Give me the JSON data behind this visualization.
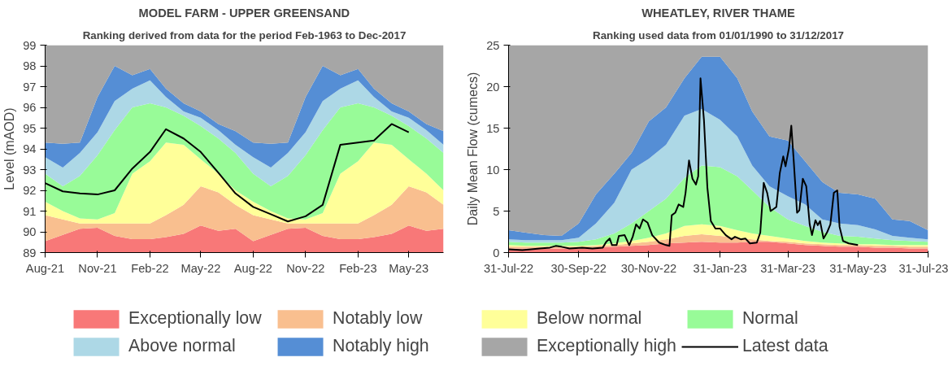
{
  "chart_data": [
    {
      "type": "area",
      "title": "MODEL FARM - UPPER GREENSAND",
      "subtitle": "Ranking derived from data for the period Feb-1963 to Dec-2017",
      "ylabel": "Level (mAOD)",
      "x": [
        "2021-08",
        "2021-09",
        "2021-10",
        "2021-11",
        "2021-12",
        "2022-01",
        "2022-02",
        "2022-03",
        "2022-04",
        "2022-05",
        "2022-06",
        "2022-07",
        "2022-08",
        "2022-09",
        "2022-10",
        "2022-11",
        "2022-12",
        "2023-01",
        "2023-02",
        "2023-03",
        "2023-04",
        "2023-05",
        "2023-06",
        "2023-07"
      ],
      "xlim": [
        "2021-08",
        "2023-07"
      ],
      "xticks": [
        {
          "value": "2021-08",
          "label": "Aug-21"
        },
        {
          "value": "2021-11",
          "label": "Nov-21"
        },
        {
          "value": "2022-02",
          "label": "Feb-22"
        },
        {
          "value": "2022-05",
          "label": "May-22"
        },
        {
          "value": "2022-08",
          "label": "Aug-22"
        },
        {
          "value": "2022-11",
          "label": "Nov-22"
        },
        {
          "value": "2023-02",
          "label": "Feb-23"
        },
        {
          "value": "2023-05",
          "label": "May-23"
        }
      ],
      "ylim": [
        89,
        99
      ],
      "yticks": [
        89,
        90,
        91,
        92,
        93,
        94,
        95,
        96,
        97,
        98,
        99
      ],
      "legend": "bottom",
      "series": [
        {
          "name": "Exceptionally low",
          "color": "#f87878",
          "values": [
            89.55,
            89.85,
            90.15,
            90.2,
            89.8,
            89.65,
            89.65,
            89.75,
            89.9,
            90.3,
            90.05,
            90.15,
            89.55,
            89.85,
            90.15,
            90.2,
            89.8,
            89.65,
            89.65,
            89.75,
            89.9,
            90.3,
            90.05,
            90.15
          ]
        },
        {
          "name": "Notably low",
          "color": "#f9bf8f",
          "values": [
            90.8,
            90.6,
            90.4,
            90.4,
            90.4,
            90.4,
            90.4,
            90.8,
            91.3,
            92.2,
            91.9,
            91.3,
            90.8,
            90.6,
            90.4,
            90.4,
            90.4,
            90.4,
            90.4,
            90.8,
            91.3,
            92.2,
            91.9,
            91.3
          ]
        },
        {
          "name": "Below normal",
          "color": "#ffff99",
          "values": [
            91.45,
            91.0,
            90.65,
            90.6,
            90.9,
            92.8,
            93.4,
            94.3,
            94.2,
            93.5,
            92.8,
            92.0,
            91.45,
            91.0,
            90.65,
            90.6,
            90.9,
            92.8,
            93.4,
            94.3,
            94.2,
            93.5,
            92.8,
            92.0
          ]
        },
        {
          "name": "Normal",
          "color": "#98fb98",
          "values": [
            92.8,
            92.2,
            92.7,
            93.7,
            94.9,
            96.0,
            96.2,
            96.0,
            95.6,
            95.1,
            94.5,
            93.8,
            92.8,
            92.2,
            92.7,
            93.7,
            94.9,
            96.0,
            96.2,
            96.0,
            95.6,
            95.1,
            94.5,
            93.8
          ]
        },
        {
          "name": "Above normal",
          "color": "#add8e6",
          "values": [
            93.6,
            93.1,
            93.8,
            94.8,
            96.3,
            96.9,
            97.3,
            96.5,
            95.8,
            95.5,
            94.9,
            94.2,
            93.6,
            93.1,
            93.8,
            94.8,
            96.3,
            96.9,
            97.3,
            96.5,
            95.8,
            95.5,
            94.9,
            94.2
          ]
        },
        {
          "name": "Notably high",
          "color": "#558ed5",
          "values": [
            94.3,
            94.25,
            94.3,
            96.5,
            98.0,
            97.55,
            97.85,
            96.9,
            96.2,
            95.8,
            95.2,
            94.85,
            94.3,
            94.25,
            94.3,
            96.5,
            98.0,
            97.55,
            97.85,
            96.9,
            96.2,
            95.8,
            95.2,
            94.85
          ]
        },
        {
          "name": "Exceptionally high",
          "color": "#a6a6a6",
          "values": [
            99,
            99,
            99,
            99,
            99,
            99,
            99,
            99,
            99,
            99,
            99,
            99,
            99,
            99,
            99,
            99,
            99,
            99,
            99,
            99,
            99,
            99,
            99,
            99
          ]
        },
        {
          "name": "Latest data",
          "type": "line",
          "color": "#000000",
          "x": [
            "2021-08",
            "2021-09",
            "2021-10",
            "2021-11",
            "2021-12",
            "2022-01",
            "2022-02",
            "2022-03",
            "2022-04",
            "2022-05",
            "2022-06",
            "2022-07",
            "2022-08",
            "2022-09",
            "2022-10",
            "2022-11",
            "2022-12",
            "2023-01",
            "2023-02",
            "2023-03",
            "2023-04",
            "2023-05"
          ],
          "values": [
            92.35,
            91.95,
            91.85,
            91.8,
            92.0,
            93.05,
            93.85,
            94.95,
            94.5,
            93.85,
            92.85,
            91.85,
            91.2,
            90.85,
            90.5,
            90.75,
            91.3,
            94.2,
            94.3,
            94.4,
            95.2,
            94.8
          ]
        }
      ]
    },
    {
      "type": "area",
      "title": "WHEATLEY, RIVER THAME",
      "subtitle": "Ranking used data from 01/01/1990 to 31/12/2017",
      "ylabel": "Daily Mean Flow (cumecs)",
      "x": [
        "2022-07-31",
        "2022-08-15",
        "2022-08-31",
        "2022-09-15",
        "2022-09-30",
        "2022-10-15",
        "2022-10-31",
        "2022-11-15",
        "2022-11-30",
        "2022-12-15",
        "2022-12-31",
        "2023-01-15",
        "2023-01-31",
        "2023-02-15",
        "2023-02-28",
        "2023-03-15",
        "2023-03-31",
        "2023-04-15",
        "2023-04-30",
        "2023-05-15",
        "2023-05-31",
        "2023-06-15",
        "2023-06-30",
        "2023-07-15",
        "2023-07-31"
      ],
      "xlim": [
        "2022-07-31",
        "2023-07-31"
      ],
      "xticks": [
        {
          "value": "2022-07-31",
          "label": "31-Jul-22"
        },
        {
          "value": "2022-09-30",
          "label": "30-Sep-22"
        },
        {
          "value": "2022-11-30",
          "label": "30-Nov-22"
        },
        {
          "value": "2023-01-31",
          "label": "31-Jan-23"
        },
        {
          "value": "2023-03-31",
          "label": "31-Mar-23"
        },
        {
          "value": "2023-05-31",
          "label": "31-May-23"
        },
        {
          "value": "2023-07-31",
          "label": "31-Jul-23"
        }
      ],
      "ylim": [
        0,
        25
      ],
      "yticks": [
        0,
        5,
        10,
        15,
        20,
        25
      ],
      "legend": "bottom",
      "series": [
        {
          "name": "Exceptionally low",
          "color": "#f87878",
          "values": [
            0.5,
            0.5,
            0.5,
            0.5,
            0.5,
            0.6,
            0.7,
            0.8,
            0.9,
            1.1,
            1.2,
            1.3,
            1.2,
            1.2,
            1.3,
            1.3,
            1.1,
            0.9,
            0.8,
            0.7,
            0.7,
            0.6,
            0.6,
            0.5,
            0.5
          ]
        },
        {
          "name": "Notably low",
          "color": "#f9bf8f",
          "values": [
            0.7,
            0.7,
            0.7,
            0.7,
            0.7,
            0.8,
            0.9,
            1.1,
            1.3,
            1.6,
            2.0,
            2.2,
            2.0,
            1.8,
            1.6,
            1.4,
            1.3,
            1.1,
            1.0,
            0.9,
            0.9,
            0.8,
            0.8,
            0.7,
            0.7
          ]
        },
        {
          "name": "Below normal",
          "color": "#ffff99",
          "values": [
            0.9,
            0.8,
            0.8,
            0.8,
            0.8,
            0.9,
            1.1,
            1.4,
            1.8,
            2.3,
            3.2,
            3.4,
            3.2,
            2.7,
            2.3,
            2.0,
            1.7,
            1.4,
            1.2,
            1.1,
            1.0,
            1.0,
            0.9,
            0.9,
            0.9
          ]
        },
        {
          "name": "Normal",
          "color": "#98fb98",
          "values": [
            1.3,
            1.2,
            1.2,
            1.2,
            1.3,
            1.6,
            2.3,
            3.5,
            5.0,
            6.5,
            9.0,
            10.5,
            10.3,
            9.2,
            7.5,
            5.5,
            4.0,
            3.2,
            2.5,
            2.0,
            1.9,
            1.7,
            1.5,
            1.4,
            1.3
          ]
        },
        {
          "name": "Above normal",
          "color": "#add8e6",
          "values": [
            1.6,
            1.5,
            1.5,
            1.5,
            1.8,
            3.5,
            6.0,
            10.0,
            11.3,
            13.0,
            16.5,
            17.3,
            16.0,
            14.0,
            10.5,
            8.0,
            6.8,
            5.8,
            4.0,
            3.5,
            3.3,
            2.8,
            2.0,
            1.8,
            1.6
          ]
        },
        {
          "name": "Notably high",
          "color": "#558ed5",
          "values": [
            2.7,
            2.4,
            2.1,
            2.0,
            3.5,
            7.0,
            9.5,
            12.0,
            15.8,
            17.5,
            21.0,
            23.6,
            23.6,
            21.0,
            17.0,
            14.0,
            13.5,
            11.0,
            8.5,
            7.2,
            7.0,
            6.5,
            4.0,
            3.8,
            2.7
          ]
        },
        {
          "name": "Exceptionally high",
          "color": "#a6a6a6",
          "values": [
            25,
            25,
            25,
            25,
            25,
            25,
            25,
            25,
            25,
            25,
            25,
            25,
            25,
            25,
            25,
            25,
            25,
            25,
            25,
            25,
            25,
            25,
            25,
            25,
            25
          ]
        },
        {
          "name": "Latest data",
          "type": "line",
          "color": "#000000",
          "x": [
            "2022-07-31",
            "2022-08-12",
            "2022-08-27",
            "2022-09-05",
            "2022-09-10",
            "2022-09-15",
            "2022-09-22",
            "2022-10-03",
            "2022-10-12",
            "2022-10-21",
            "2022-10-24",
            "2022-10-27",
            "2022-10-29",
            "2022-11-02",
            "2022-11-04",
            "2022-11-09",
            "2022-11-13",
            "2022-11-16",
            "2022-11-19",
            "2022-11-22",
            "2022-11-25",
            "2022-11-29",
            "2022-12-03",
            "2022-12-09",
            "2022-12-15",
            "2022-12-18",
            "2022-12-20",
            "2022-12-23",
            "2022-12-26",
            "2022-12-30",
            "2023-01-01",
            "2023-01-04",
            "2023-01-07",
            "2023-01-10",
            "2023-01-12",
            "2023-01-14",
            "2023-01-17",
            "2023-01-20",
            "2023-01-23",
            "2023-01-27",
            "2023-01-31",
            "2023-02-05",
            "2023-02-10",
            "2023-02-13",
            "2023-02-18",
            "2023-02-22",
            "2023-02-26",
            "2023-03-04",
            "2023-03-07",
            "2023-03-10",
            "2023-03-13",
            "2023-03-16",
            "2023-03-19",
            "2023-03-21",
            "2023-03-24",
            "2023-03-27",
            "2023-03-29",
            "2023-04-01",
            "2023-04-03",
            "2023-04-05",
            "2023-04-08",
            "2023-04-10",
            "2023-04-13",
            "2023-04-16",
            "2023-04-19",
            "2023-04-21",
            "2023-04-24",
            "2023-04-26",
            "2023-04-28",
            "2023-05-01",
            "2023-05-04",
            "2023-05-07",
            "2023-05-10",
            "2023-05-13",
            "2023-05-15",
            "2023-05-18",
            "2023-05-23",
            "2023-05-27",
            "2023-05-31"
          ],
          "values": [
            0.4,
            0.3,
            0.5,
            0.6,
            0.8,
            0.7,
            0.5,
            0.6,
            0.5,
            0.6,
            1.3,
            1.7,
            0.9,
            0.9,
            2.0,
            2.1,
            0.9,
            1.9,
            3.4,
            2.9,
            4.0,
            3.6,
            2.1,
            1.2,
            0.9,
            0.8,
            4.5,
            4.8,
            5.8,
            5.5,
            7.2,
            11.1,
            8.9,
            8.2,
            9.2,
            21.0,
            16.0,
            7.8,
            3.8,
            2.9,
            2.9,
            2.1,
            1.6,
            1.9,
            1.6,
            1.7,
            1.1,
            1.2,
            2.4,
            8.4,
            7.2,
            5.0,
            5.3,
            5.5,
            9.6,
            11.6,
            10.4,
            12.6,
            15.3,
            11.3,
            4.8,
            5.1,
            8.9,
            8.0,
            3.4,
            2.1,
            3.9,
            3.3,
            3.8,
            1.7,
            2.4,
            3.4,
            7.2,
            7.5,
            3.1,
            1.4,
            1.1,
            1.0,
            0.9
          ]
        }
      ]
    }
  ]
}
